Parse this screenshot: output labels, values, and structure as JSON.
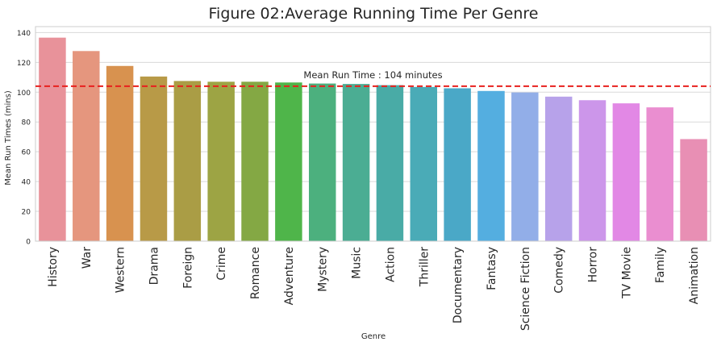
{
  "chart_data": {
    "type": "bar",
    "title": "Figure 02:Average Running Time Per Genre",
    "xlabel": "Genre",
    "ylabel": "Mean Run Times (mins)",
    "ylim": [
      0,
      144
    ],
    "yticks": [
      0,
      20,
      40,
      60,
      80,
      100,
      120,
      140
    ],
    "grid": true,
    "categories": [
      "History",
      "War",
      "Western",
      "Drama",
      "Foreign",
      "Crime",
      "Romance",
      "Adventure",
      "Mystery",
      "Music",
      "Action",
      "Thriller",
      "Documentary",
      "Fantasy",
      "Science Fiction",
      "Comedy",
      "Horror",
      "TV Movie",
      "Family",
      "Animation"
    ],
    "values": [
      136.6,
      127.6,
      117.6,
      110.5,
      107.5,
      107.0,
      107.0,
      106.5,
      105.8,
      105.5,
      104.7,
      103.5,
      102.6,
      100.8,
      99.8,
      97.0,
      94.6,
      92.5,
      89.8,
      68.5
    ],
    "colors": [
      "#e8929a",
      "#e5967e",
      "#d8924f",
      "#b89a47",
      "#aa9d45",
      "#9da444",
      "#84a844",
      "#4fb54a",
      "#4cb07e",
      "#4bad93",
      "#49aba6",
      "#4aabb7",
      "#4aa8c7",
      "#54aee0",
      "#92aee8",
      "#b7a2ea",
      "#cc96ea",
      "#e288e5",
      "#ea8ed0",
      "#e88fb4"
    ],
    "reference_line": {
      "value": 104,
      "label": "Mean Run Time : 104 minutes",
      "color": "#e8201e"
    }
  }
}
